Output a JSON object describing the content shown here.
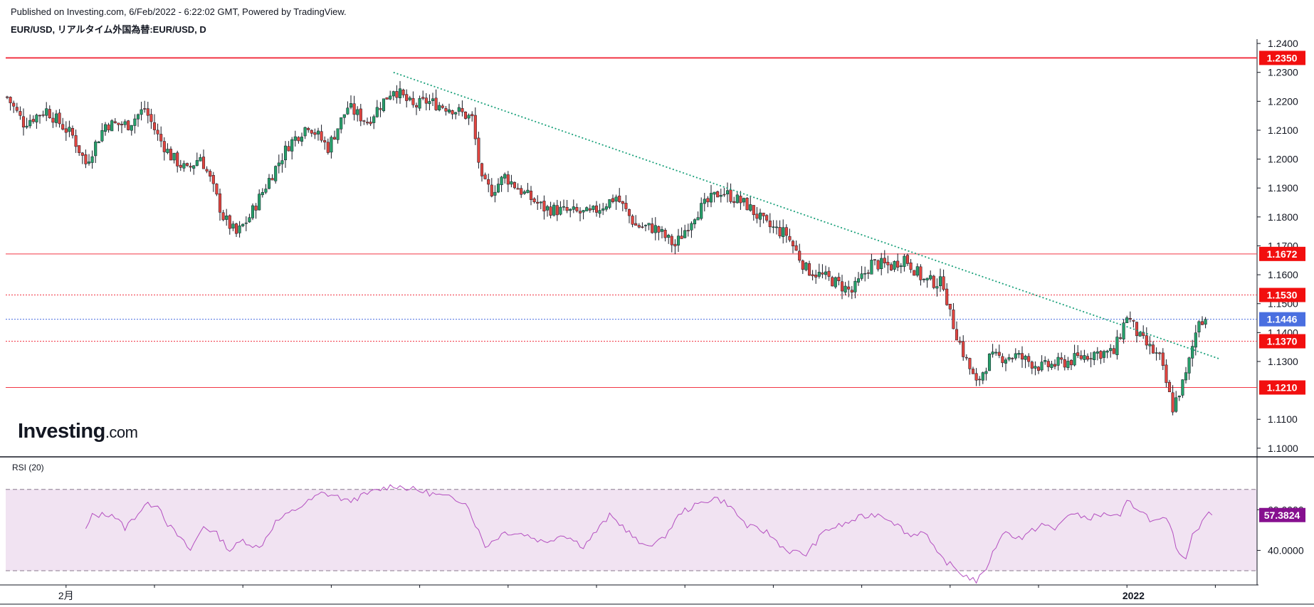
{
  "header": {
    "published": "Published on Investing.com, 6/Feb/2022 - 6:22:02 GMT, Powered by TradingView.",
    "symbol": "EUR/USD, リアルタイム外国為替:EUR/USD, D"
  },
  "logo": {
    "brand": "Investing",
    "suffix": ".com"
  },
  "colors": {
    "up": "#26a06a",
    "down": "#e2453f",
    "wick": "#131722",
    "support_line": "#f23645",
    "current_line": "#4a6fe0",
    "trend_line": "#19a07a",
    "rsi_line": "#b44fc0",
    "rsi_fill": "#f1e3f2",
    "rsi_label_bg": "#86108f",
    "current_label_bg": "#4a6fe0",
    "level_label_bg": "#f20f0f"
  },
  "chart_data": [
    {
      "type": "candlestick",
      "symbol": "EUR/USD",
      "timeframe": "D",
      "ylim": [
        1.0975,
        1.2415
      ],
      "y_ticks": [
        "1.2400",
        "1.2300",
        "1.2200",
        "1.2100",
        "1.2000",
        "1.1900",
        "1.1800",
        "1.1700",
        "1.1600",
        "1.1500",
        "1.1400",
        "1.1300",
        "1.1100",
        "1.1000"
      ],
      "x_labels": [
        {
          "label": "2月",
          "index": 18
        },
        {
          "label": "2022",
          "index": 344
        }
      ],
      "candle_count": 370,
      "close_path_anchors": [
        [
          0,
          1.2215
        ],
        [
          5,
          1.2125
        ],
        [
          12,
          1.217
        ],
        [
          20,
          1.208
        ],
        [
          24,
          1.1985
        ],
        [
          30,
          1.212
        ],
        [
          37,
          1.212
        ],
        [
          42,
          1.2175
        ],
        [
          46,
          1.208
        ],
        [
          50,
          1.201
        ],
        [
          55,
          1.196
        ],
        [
          59,
          1.201
        ],
        [
          62,
          1.193
        ],
        [
          66,
          1.18
        ],
        [
          70,
          1.174
        ],
        [
          74,
          1.18
        ],
        [
          80,
          1.193
        ],
        [
          86,
          1.205
        ],
        [
          92,
          1.212
        ],
        [
          98,
          1.204
        ],
        [
          104,
          1.218
        ],
        [
          110,
          1.213
        ],
        [
          118,
          1.2245
        ],
        [
          124,
          1.218
        ],
        [
          128,
          1.22
        ],
        [
          136,
          1.2175
        ],
        [
          142,
          1.214
        ],
        [
          145,
          1.192
        ],
        [
          148,
          1.189
        ],
        [
          152,
          1.194
        ],
        [
          158,
          1.188
        ],
        [
          164,
          1.183
        ],
        [
          170,
          1.182
        ],
        [
          178,
          1.181
        ],
        [
          186,
          1.187
        ],
        [
          192,
          1.177
        ],
        [
          198,
          1.176
        ],
        [
          204,
          1.17
        ],
        [
          210,
          1.181
        ],
        [
          218,
          1.189
        ],
        [
          226,
          1.184
        ],
        [
          232,
          1.177
        ],
        [
          238,
          1.174
        ],
        [
          244,
          1.162
        ],
        [
          252,
          1.158
        ],
        [
          258,
          1.154
        ],
        [
          264,
          1.164
        ],
        [
          270,
          1.163
        ],
        [
          274,
          1.166
        ],
        [
          280,
          1.158
        ],
        [
          286,
          1.157
        ],
        [
          288,
          1.146
        ],
        [
          292,
          1.133
        ],
        [
          296,
          1.122
        ],
        [
          300,
          1.131
        ],
        [
          308,
          1.132
        ],
        [
          316,
          1.128
        ],
        [
          324,
          1.13
        ],
        [
          332,
          1.133
        ],
        [
          338,
          1.133
        ],
        [
          342,
          1.146
        ],
        [
          346,
          1.138
        ],
        [
          352,
          1.131
        ],
        [
          356,
          1.114
        ],
        [
          360,
          1.125
        ],
        [
          364,
          1.145
        ],
        [
          366,
          1.1446
        ]
      ],
      "last_price": "1.1446",
      "levels": [
        {
          "price": 1.235,
          "label": "1.2350",
          "style": "solid",
          "width": 2
        },
        {
          "price": 1.1672,
          "label": "1.1672",
          "style": "solid",
          "width": 1
        },
        {
          "price": 1.153,
          "label": "1.1530",
          "style": "dotted",
          "width": 1
        },
        {
          "price": 1.137,
          "label": "1.1370",
          "style": "dotted",
          "width": 1
        },
        {
          "price": 1.121,
          "label": "1.1210",
          "style": "solid",
          "width": 1
        }
      ],
      "trendline": {
        "start_index": 118,
        "start_price": 1.23,
        "end_index": 370,
        "end_price": 1.131,
        "style": "dotted"
      }
    },
    {
      "type": "line",
      "title": "RSI (20)",
      "ylim": [
        23,
        86
      ],
      "bands": [
        70,
        30
      ],
      "y_ticks": [
        "60.0000",
        "40.0000"
      ],
      "last_value": "57.3824",
      "start_index": 24,
      "value_anchors": [
        [
          24,
          50
        ],
        [
          26,
          57
        ],
        [
          32,
          58
        ],
        [
          36,
          51
        ],
        [
          42,
          62
        ],
        [
          46,
          63
        ],
        [
          49,
          53
        ],
        [
          56,
          40
        ],
        [
          60,
          52
        ],
        [
          64,
          48
        ],
        [
          68,
          40
        ],
        [
          72,
          45
        ],
        [
          77,
          41
        ],
        [
          82,
          54
        ],
        [
          90,
          62
        ],
        [
          96,
          68
        ],
        [
          100,
          67
        ],
        [
          104,
          64
        ],
        [
          112,
          69
        ],
        [
          118,
          72
        ],
        [
          124,
          70
        ],
        [
          132,
          67
        ],
        [
          140,
          64
        ],
        [
          146,
          42
        ],
        [
          152,
          49
        ],
        [
          158,
          48
        ],
        [
          164,
          44
        ],
        [
          170,
          48
        ],
        [
          176,
          42
        ],
        [
          184,
          57
        ],
        [
          188,
          52
        ],
        [
          194,
          42
        ],
        [
          200,
          45
        ],
        [
          206,
          59
        ],
        [
          216,
          66
        ],
        [
          220,
          63
        ],
        [
          226,
          52
        ],
        [
          232,
          49
        ],
        [
          238,
          40
        ],
        [
          244,
          38
        ],
        [
          250,
          50
        ],
        [
          256,
          53
        ],
        [
          260,
          56
        ],
        [
          266,
          58
        ],
        [
          270,
          55
        ],
        [
          276,
          47
        ],
        [
          280,
          50
        ],
        [
          284,
          38
        ],
        [
          288,
          33
        ],
        [
          292,
          28
        ],
        [
          296,
          25
        ],
        [
          298,
          28
        ],
        [
          300,
          35
        ],
        [
          304,
          49
        ],
        [
          310,
          46
        ],
        [
          316,
          53
        ],
        [
          320,
          50
        ],
        [
          324,
          58
        ],
        [
          330,
          56
        ],
        [
          336,
          58
        ],
        [
          340,
          56
        ],
        [
          342,
          64
        ],
        [
          346,
          60
        ],
        [
          350,
          54
        ],
        [
          354,
          55
        ],
        [
          356,
          48
        ],
        [
          358,
          37
        ],
        [
          360,
          37
        ],
        [
          362,
          48
        ],
        [
          364,
          52
        ],
        [
          366,
          58
        ],
        [
          368,
          57.38
        ]
      ]
    }
  ]
}
